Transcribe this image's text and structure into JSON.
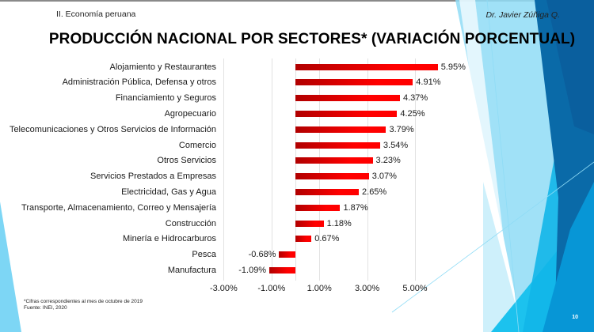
{
  "header": {
    "section": "II. Economía peruana",
    "author": "Dr. Javier Zúñiga Q."
  },
  "slide": {
    "page_number": "10",
    "colors": {
      "bar_dark": "#b00000",
      "bar_bright": "#ff0000",
      "deco_light": "#7dd6f5",
      "deco_cyan": "#1cc2ee",
      "deco_blue": "#0b8fd0",
      "deco_navy": "#0a5f9e"
    }
  },
  "footer": {
    "note": "*Cifras correspondientes al mes de octubre de 2019",
    "source": "Fuente: INEI, 2020"
  },
  "chart_data": {
    "type": "bar",
    "orientation": "horizontal",
    "title": "PRODUCCIÓN NACIONAL POR SECTORES* (VARIACIÓN PORCENTUAL)",
    "xlabel": "",
    "ylabel": "",
    "xlim": [
      -3.0,
      5.0
    ],
    "x_ticks": [
      -3,
      -1,
      1,
      3,
      5
    ],
    "x_tick_labels": [
      "-3.00%",
      "-1.00%",
      "1.00%",
      "3.00%",
      "5.00%"
    ],
    "grid": "vertical",
    "legend": "none",
    "categories": [
      "Alojamiento y Restaurantes",
      "Administración Pública, Defensa y otros",
      "Financiamiento y Seguros",
      "Agropecuario",
      "Telecomunicaciones y Otros Servicios de Información",
      "Comercio",
      "Otros Servicios",
      "Servicios Prestados a Empresas",
      "Electricidad, Gas y Agua",
      "Transporte, Almacenamiento, Correo y Mensajería",
      "Construcción",
      "Minería e Hidrocarburos",
      "Pesca",
      "Manufactura"
    ],
    "values": [
      5.95,
      4.91,
      4.37,
      4.25,
      3.79,
      3.54,
      3.23,
      3.07,
      2.65,
      1.87,
      1.18,
      0.67,
      -0.68,
      -1.09
    ],
    "value_labels": [
      "5.95%",
      "4.91%",
      "4.37%",
      "4.25%",
      "3.79%",
      "3.54%",
      "3.23%",
      "3.07%",
      "2.65%",
      "1.87%",
      "1.18%",
      "0.67%",
      "-0.68%",
      "-1.09%"
    ]
  }
}
